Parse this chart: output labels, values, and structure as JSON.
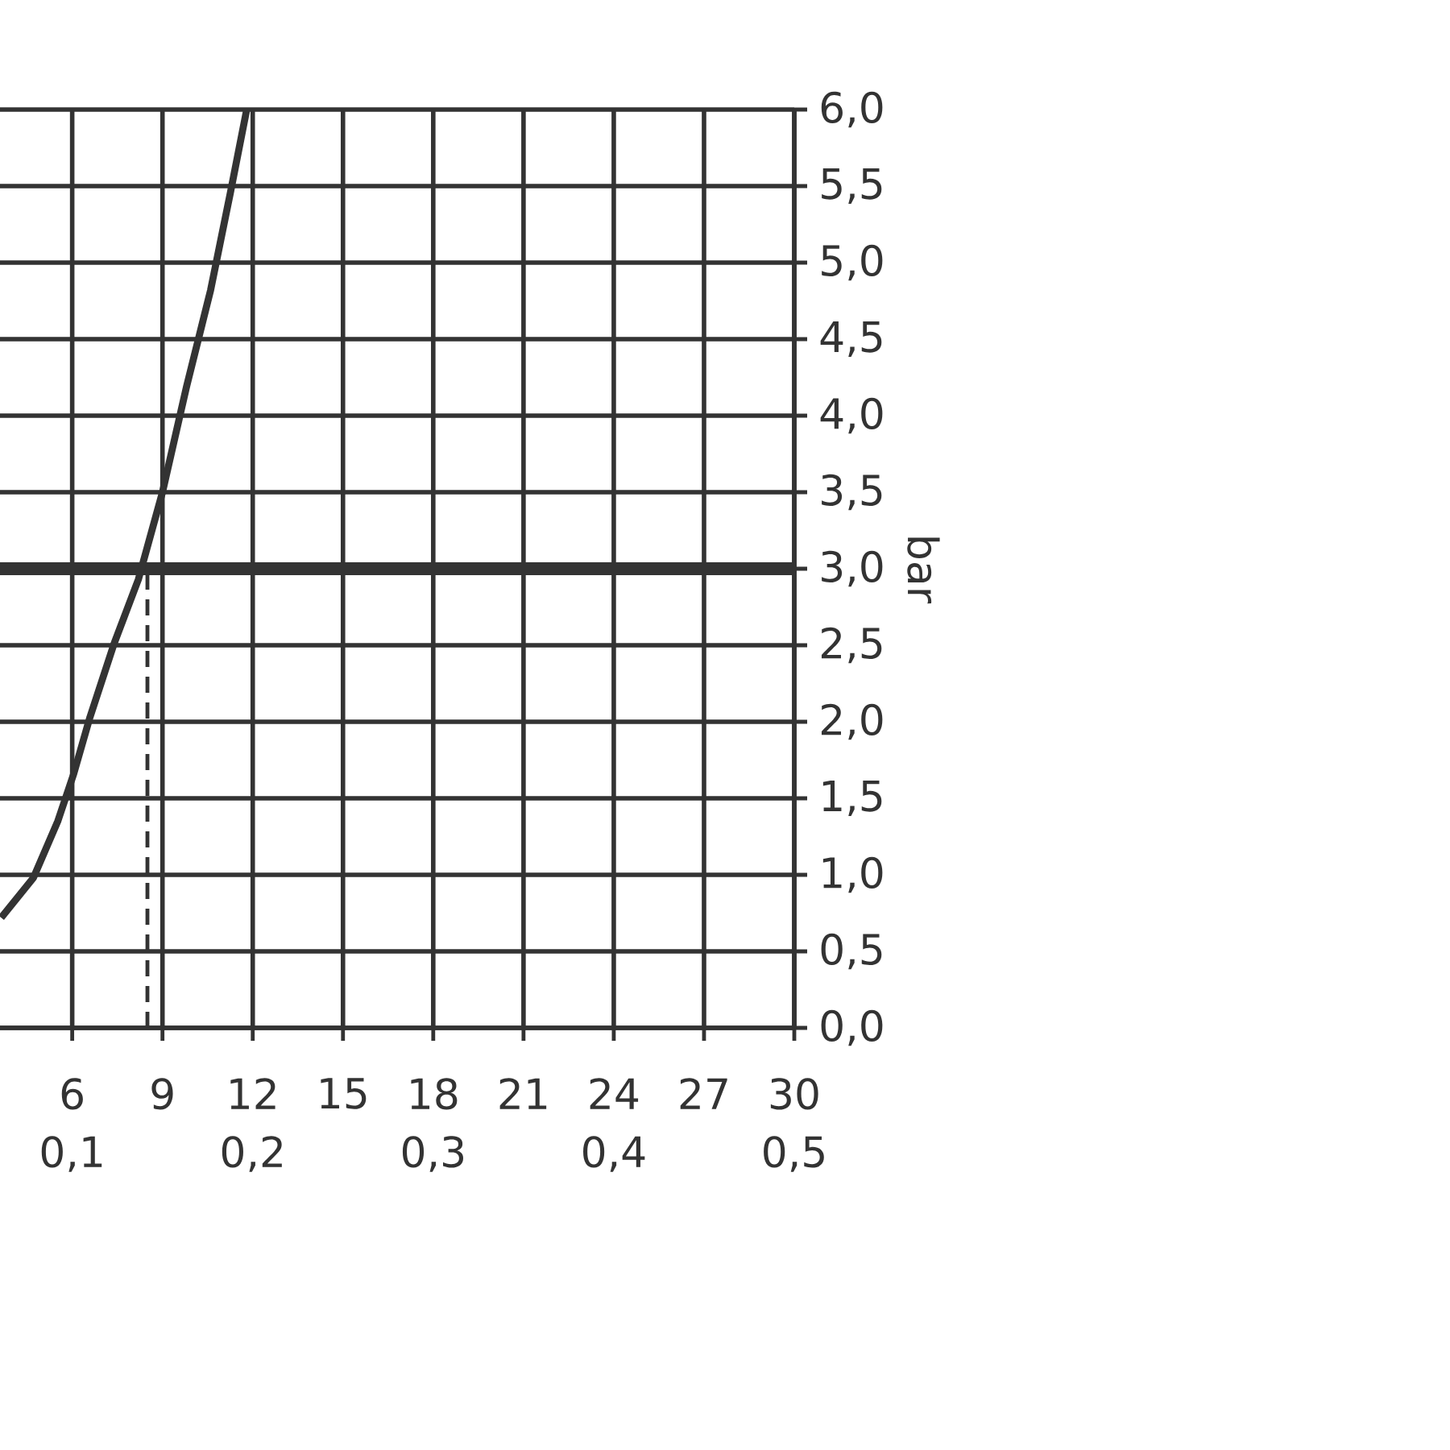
{
  "chart_data": {
    "type": "line",
    "ylabel": "bar",
    "x": [
      3.64,
      4.71,
      5.52,
      6.05,
      6.59,
      7.39,
      8.2,
      9.0,
      9.8,
      10.6,
      11.25,
      11.8
    ],
    "series": [
      {
        "color": "#333333",
        "values": [
          0.72,
          0.98,
          1.35,
          1.66,
          2.03,
          2.51,
          2.93,
          3.5,
          4.19,
          4.82,
          5.45,
          6.0
        ]
      },
      {
        "color": "#333333",
        "type": "line",
        "line_style": "dashed",
        "x": [
          8.5,
          8.5
        ],
        "values": [
          0,
          3
        ]
      }
    ],
    "xlim": [
      3.6,
      30
    ],
    "xticks": [
      6,
      9,
      12,
      15,
      18,
      21,
      24,
      27,
      30
    ],
    "x2lim": [
      0.06,
      0.5
    ],
    "x2ticks": [
      {
        "value": 0.1,
        "label": "0,1"
      },
      {
        "value": 0.2,
        "label": "0,2"
      },
      {
        "value": 0.3,
        "label": "0,3"
      },
      {
        "value": 0.4,
        "label": "0,4"
      },
      {
        "value": 0.5,
        "label": "0,5"
      }
    ],
    "ylim": [
      0,
      6
    ],
    "yticks": [
      {
        "value": 0,
        "label": "0,0"
      },
      {
        "value": 0.5,
        "label": "0,5"
      },
      {
        "value": 1,
        "label": "1,0"
      },
      {
        "value": 1.5,
        "label": "1,5"
      },
      {
        "value": 2,
        "label": "2,0"
      },
      {
        "value": 2.5,
        "label": "2,5"
      },
      {
        "value": 3,
        "label": "3,0"
      },
      {
        "value": 3.5,
        "label": "3,5"
      },
      {
        "value": 4,
        "label": "4,0"
      },
      {
        "value": 4.5,
        "label": "4,5"
      },
      {
        "value": 5,
        "label": "5,0"
      },
      {
        "value": 5.5,
        "label": "5,5"
      },
      {
        "value": 6,
        "label": "6,0"
      }
    ],
    "ref_lines": [
      {
        "axis": "y",
        "value": 3,
        "color": "#333333",
        "line_style": "solid"
      }
    ],
    "grid": true,
    "marker": "none",
    "line_style": "solid"
  }
}
